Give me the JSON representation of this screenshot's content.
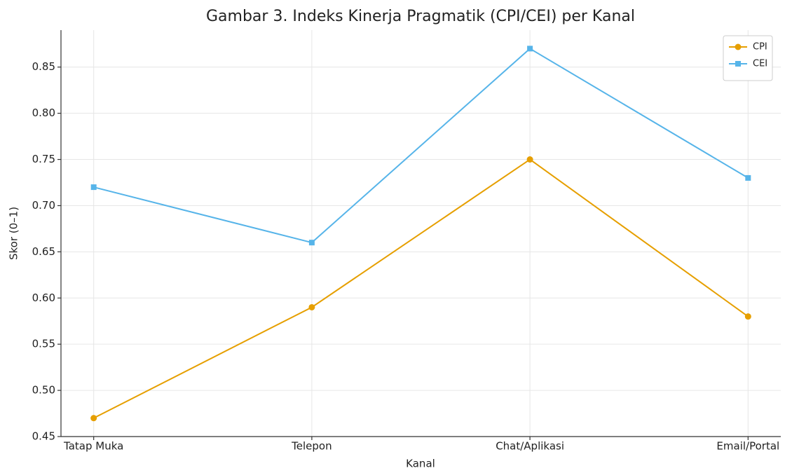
{
  "chart_data": {
    "type": "line",
    "title": "Gambar 3. Indeks Kinerja Pragmatik (CPI/CEI) per Kanal",
    "xlabel": "Kanal",
    "ylabel": "Skor (0–1)",
    "categories": [
      "Tatap Muka",
      "Telepon",
      "Chat/Aplikasi",
      "Email/Portal"
    ],
    "series": [
      {
        "name": "CPI",
        "color": "#e69f00",
        "marker": "circle",
        "values": [
          0.47,
          0.59,
          0.75,
          0.58
        ]
      },
      {
        "name": "CEI",
        "color": "#56b4e9",
        "marker": "square",
        "values": [
          0.72,
          0.66,
          0.87,
          0.73
        ]
      }
    ],
    "ylim": [
      0.45,
      0.89
    ],
    "yticks": [
      0.45,
      {
        "value": 0.5,
        "label": "0.50"
      },
      0.55,
      {
        "value": 0.6,
        "label": "0.60"
      },
      0.65,
      {
        "value": 0.7,
        "label": "0.70"
      },
      0.75,
      {
        "value": 0.8,
        "label": "0.80"
      },
      0.85
    ],
    "grid": true,
    "legend": "upper right"
  }
}
